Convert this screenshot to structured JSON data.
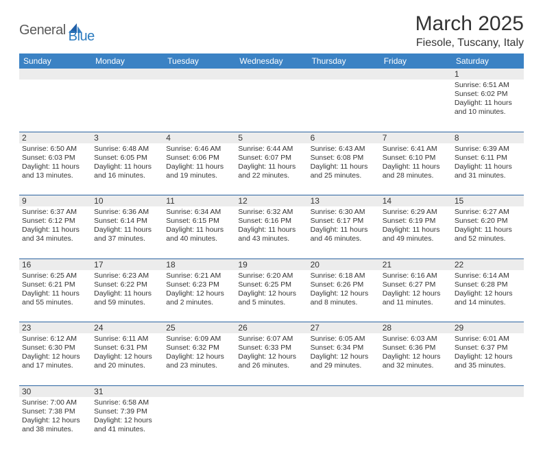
{
  "header": {
    "logo_general": "General",
    "logo_blue": "Blue",
    "month_title": "March 2025",
    "location": "Fiesole, Tuscany, Italy"
  },
  "colors": {
    "header_bg": "#3b82c4",
    "divider": "#2962a0",
    "daynum_bg": "#ececec",
    "text": "#333333",
    "logo_gray": "#5a5a5a",
    "logo_blue": "#2b7bbf"
  },
  "days_of_week": [
    "Sunday",
    "Monday",
    "Tuesday",
    "Wednesday",
    "Thursday",
    "Friday",
    "Saturday"
  ],
  "weeks": [
    [
      null,
      null,
      null,
      null,
      null,
      null,
      {
        "n": "1",
        "sunrise": "Sunrise: 6:51 AM",
        "sunset": "Sunset: 6:02 PM",
        "daylight": "Daylight: 11 hours and 10 minutes."
      }
    ],
    [
      {
        "n": "2",
        "sunrise": "Sunrise: 6:50 AM",
        "sunset": "Sunset: 6:03 PM",
        "daylight": "Daylight: 11 hours and 13 minutes."
      },
      {
        "n": "3",
        "sunrise": "Sunrise: 6:48 AM",
        "sunset": "Sunset: 6:05 PM",
        "daylight": "Daylight: 11 hours and 16 minutes."
      },
      {
        "n": "4",
        "sunrise": "Sunrise: 6:46 AM",
        "sunset": "Sunset: 6:06 PM",
        "daylight": "Daylight: 11 hours and 19 minutes."
      },
      {
        "n": "5",
        "sunrise": "Sunrise: 6:44 AM",
        "sunset": "Sunset: 6:07 PM",
        "daylight": "Daylight: 11 hours and 22 minutes."
      },
      {
        "n": "6",
        "sunrise": "Sunrise: 6:43 AM",
        "sunset": "Sunset: 6:08 PM",
        "daylight": "Daylight: 11 hours and 25 minutes."
      },
      {
        "n": "7",
        "sunrise": "Sunrise: 6:41 AM",
        "sunset": "Sunset: 6:10 PM",
        "daylight": "Daylight: 11 hours and 28 minutes."
      },
      {
        "n": "8",
        "sunrise": "Sunrise: 6:39 AM",
        "sunset": "Sunset: 6:11 PM",
        "daylight": "Daylight: 11 hours and 31 minutes."
      }
    ],
    [
      {
        "n": "9",
        "sunrise": "Sunrise: 6:37 AM",
        "sunset": "Sunset: 6:12 PM",
        "daylight": "Daylight: 11 hours and 34 minutes."
      },
      {
        "n": "10",
        "sunrise": "Sunrise: 6:36 AM",
        "sunset": "Sunset: 6:14 PM",
        "daylight": "Daylight: 11 hours and 37 minutes."
      },
      {
        "n": "11",
        "sunrise": "Sunrise: 6:34 AM",
        "sunset": "Sunset: 6:15 PM",
        "daylight": "Daylight: 11 hours and 40 minutes."
      },
      {
        "n": "12",
        "sunrise": "Sunrise: 6:32 AM",
        "sunset": "Sunset: 6:16 PM",
        "daylight": "Daylight: 11 hours and 43 minutes."
      },
      {
        "n": "13",
        "sunrise": "Sunrise: 6:30 AM",
        "sunset": "Sunset: 6:17 PM",
        "daylight": "Daylight: 11 hours and 46 minutes."
      },
      {
        "n": "14",
        "sunrise": "Sunrise: 6:29 AM",
        "sunset": "Sunset: 6:19 PM",
        "daylight": "Daylight: 11 hours and 49 minutes."
      },
      {
        "n": "15",
        "sunrise": "Sunrise: 6:27 AM",
        "sunset": "Sunset: 6:20 PM",
        "daylight": "Daylight: 11 hours and 52 minutes."
      }
    ],
    [
      {
        "n": "16",
        "sunrise": "Sunrise: 6:25 AM",
        "sunset": "Sunset: 6:21 PM",
        "daylight": "Daylight: 11 hours and 55 minutes."
      },
      {
        "n": "17",
        "sunrise": "Sunrise: 6:23 AM",
        "sunset": "Sunset: 6:22 PM",
        "daylight": "Daylight: 11 hours and 59 minutes."
      },
      {
        "n": "18",
        "sunrise": "Sunrise: 6:21 AM",
        "sunset": "Sunset: 6:23 PM",
        "daylight": "Daylight: 12 hours and 2 minutes."
      },
      {
        "n": "19",
        "sunrise": "Sunrise: 6:20 AM",
        "sunset": "Sunset: 6:25 PM",
        "daylight": "Daylight: 12 hours and 5 minutes."
      },
      {
        "n": "20",
        "sunrise": "Sunrise: 6:18 AM",
        "sunset": "Sunset: 6:26 PM",
        "daylight": "Daylight: 12 hours and 8 minutes."
      },
      {
        "n": "21",
        "sunrise": "Sunrise: 6:16 AM",
        "sunset": "Sunset: 6:27 PM",
        "daylight": "Daylight: 12 hours and 11 minutes."
      },
      {
        "n": "22",
        "sunrise": "Sunrise: 6:14 AM",
        "sunset": "Sunset: 6:28 PM",
        "daylight": "Daylight: 12 hours and 14 minutes."
      }
    ],
    [
      {
        "n": "23",
        "sunrise": "Sunrise: 6:12 AM",
        "sunset": "Sunset: 6:30 PM",
        "daylight": "Daylight: 12 hours and 17 minutes."
      },
      {
        "n": "24",
        "sunrise": "Sunrise: 6:11 AM",
        "sunset": "Sunset: 6:31 PM",
        "daylight": "Daylight: 12 hours and 20 minutes."
      },
      {
        "n": "25",
        "sunrise": "Sunrise: 6:09 AM",
        "sunset": "Sunset: 6:32 PM",
        "daylight": "Daylight: 12 hours and 23 minutes."
      },
      {
        "n": "26",
        "sunrise": "Sunrise: 6:07 AM",
        "sunset": "Sunset: 6:33 PM",
        "daylight": "Daylight: 12 hours and 26 minutes."
      },
      {
        "n": "27",
        "sunrise": "Sunrise: 6:05 AM",
        "sunset": "Sunset: 6:34 PM",
        "daylight": "Daylight: 12 hours and 29 minutes."
      },
      {
        "n": "28",
        "sunrise": "Sunrise: 6:03 AM",
        "sunset": "Sunset: 6:36 PM",
        "daylight": "Daylight: 12 hours and 32 minutes."
      },
      {
        "n": "29",
        "sunrise": "Sunrise: 6:01 AM",
        "sunset": "Sunset: 6:37 PM",
        "daylight": "Daylight: 12 hours and 35 minutes."
      }
    ],
    [
      {
        "n": "30",
        "sunrise": "Sunrise: 7:00 AM",
        "sunset": "Sunset: 7:38 PM",
        "daylight": "Daylight: 12 hours and 38 minutes."
      },
      {
        "n": "31",
        "sunrise": "Sunrise: 6:58 AM",
        "sunset": "Sunset: 7:39 PM",
        "daylight": "Daylight: 12 hours and 41 minutes."
      },
      null,
      null,
      null,
      null,
      null
    ]
  ]
}
